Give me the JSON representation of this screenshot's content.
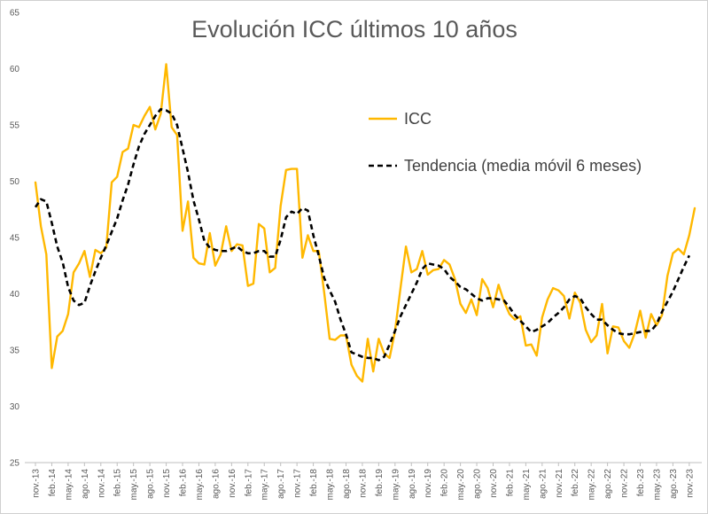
{
  "chart_data": {
    "type": "line",
    "title": "Evolución ICC últimos 10 años",
    "xlabel": "",
    "ylabel": "",
    "ylim": [
      25,
      65
    ],
    "yticks": [
      25,
      30,
      35,
      40,
      45,
      50,
      55,
      60,
      65
    ],
    "grid": false,
    "legend_position": "upper-right",
    "xtick_labels": [
      "nov.-13",
      "feb.-14",
      "may.-14",
      "ago.-14",
      "nov.-14",
      "feb.-15",
      "may.-15",
      "ago.-15",
      "nov.-15",
      "feb.-16",
      "may.-16",
      "ago.-16",
      "nov.-16",
      "feb.-17",
      "may.-17",
      "ago.-17",
      "nov.-17",
      "feb.-18",
      "may.-18",
      "ago.-18",
      "nov.-18",
      "feb.-19",
      "may.-19",
      "ago.-19",
      "nov.-19",
      "feb.-20",
      "may.-20",
      "ago.-20",
      "nov.-20",
      "feb.-21",
      "may.-21",
      "ago.-21",
      "nov.-21",
      "feb.-22",
      "may.-22",
      "ago.-22",
      "nov.-22",
      "feb.-23",
      "may.-23",
      "ago.-23",
      "nov.-23"
    ],
    "series": [
      {
        "name": "ICC",
        "color": "#FFB800",
        "style": "solid",
        "values": [
          49.9,
          46.0,
          43.5,
          33.4,
          36.2,
          36.7,
          38.2,
          41.9,
          42.7,
          43.8,
          41.5,
          43.9,
          43.6,
          44.1,
          49.9,
          50.4,
          52.6,
          52.9,
          55.0,
          54.8,
          55.8,
          56.6,
          54.6,
          56.0,
          60.4,
          54.8,
          54.1,
          45.6,
          48.2,
          43.2,
          42.7,
          42.6,
          45.4,
          42.5,
          43.5,
          46.0,
          43.8,
          44.4,
          44.3,
          40.7,
          40.9,
          46.2,
          45.8,
          41.9,
          42.3,
          47.8,
          51.0,
          51.1,
          51.1,
          43.2,
          45.2,
          43.8,
          43.8,
          40.1,
          36.0,
          35.9,
          36.3,
          36.3,
          33.7,
          32.7,
          32.2,
          36.0,
          33.1,
          36.0,
          34.7,
          34.3,
          36.7,
          40.5,
          44.2,
          41.9,
          42.2,
          43.8,
          41.7,
          42.1,
          42.2,
          43.0,
          42.6,
          41.3,
          39.1,
          38.3,
          39.5,
          38.1,
          41.3,
          40.5,
          38.8,
          40.8,
          39.3,
          38.2,
          37.7,
          38.0,
          35.4,
          35.5,
          34.5,
          37.9,
          39.5,
          40.5,
          40.3,
          39.8,
          37.8,
          40.1,
          39.2,
          36.8,
          35.7,
          36.3,
          39.1,
          34.7,
          37.1,
          37.0,
          35.8,
          35.2,
          36.5,
          38.5,
          36.1,
          38.2,
          37.2,
          38.1,
          41.6,
          43.6,
          44.0,
          43.5,
          45.2,
          47.6
        ]
      },
      {
        "name": "Tendencia (media móvil 6 meses)",
        "color": "#000000",
        "style": "dashed",
        "values": [
          47.7,
          48.4,
          48.2,
          46.3,
          44.2,
          42.8,
          40.6,
          39.4,
          39.0,
          39.2,
          40.7,
          42.0,
          43.2,
          44.3,
          45.5,
          46.7,
          48.3,
          49.7,
          51.5,
          53.1,
          54.2,
          55.0,
          55.8,
          56.4,
          56.3,
          56.0,
          55.0,
          52.9,
          50.8,
          48.3,
          46.6,
          44.7,
          44.1,
          43.9,
          43.8,
          43.8,
          44.0,
          44.2,
          43.8,
          43.6,
          43.6,
          43.8,
          43.8,
          43.3,
          43.3,
          44.8,
          46.8,
          47.3,
          47.1,
          47.6,
          47.4,
          45.2,
          43.4,
          41.4,
          40.3,
          39.3,
          37.7,
          36.4,
          34.8,
          34.6,
          34.4,
          34.3,
          34.3,
          34.1,
          34.4,
          35.5,
          36.7,
          38.0,
          39.0,
          40.0,
          41.0,
          42.2,
          42.7,
          42.6,
          42.5,
          42.2,
          41.5,
          41.1,
          40.6,
          40.4,
          40.0,
          39.6,
          39.4,
          39.6,
          39.6,
          39.5,
          39.4,
          38.8,
          38.1,
          37.6,
          37.1,
          36.6,
          36.8,
          37.1,
          37.4,
          37.9,
          38.3,
          38.8,
          39.5,
          39.8,
          39.6,
          38.8,
          38.2,
          37.7,
          37.7,
          37.2,
          36.8,
          36.5,
          36.4,
          36.4,
          36.5,
          36.6,
          36.7,
          36.7,
          37.3,
          38.4,
          39.3,
          40.2,
          41.3,
          42.4,
          43.4
        ]
      }
    ]
  }
}
